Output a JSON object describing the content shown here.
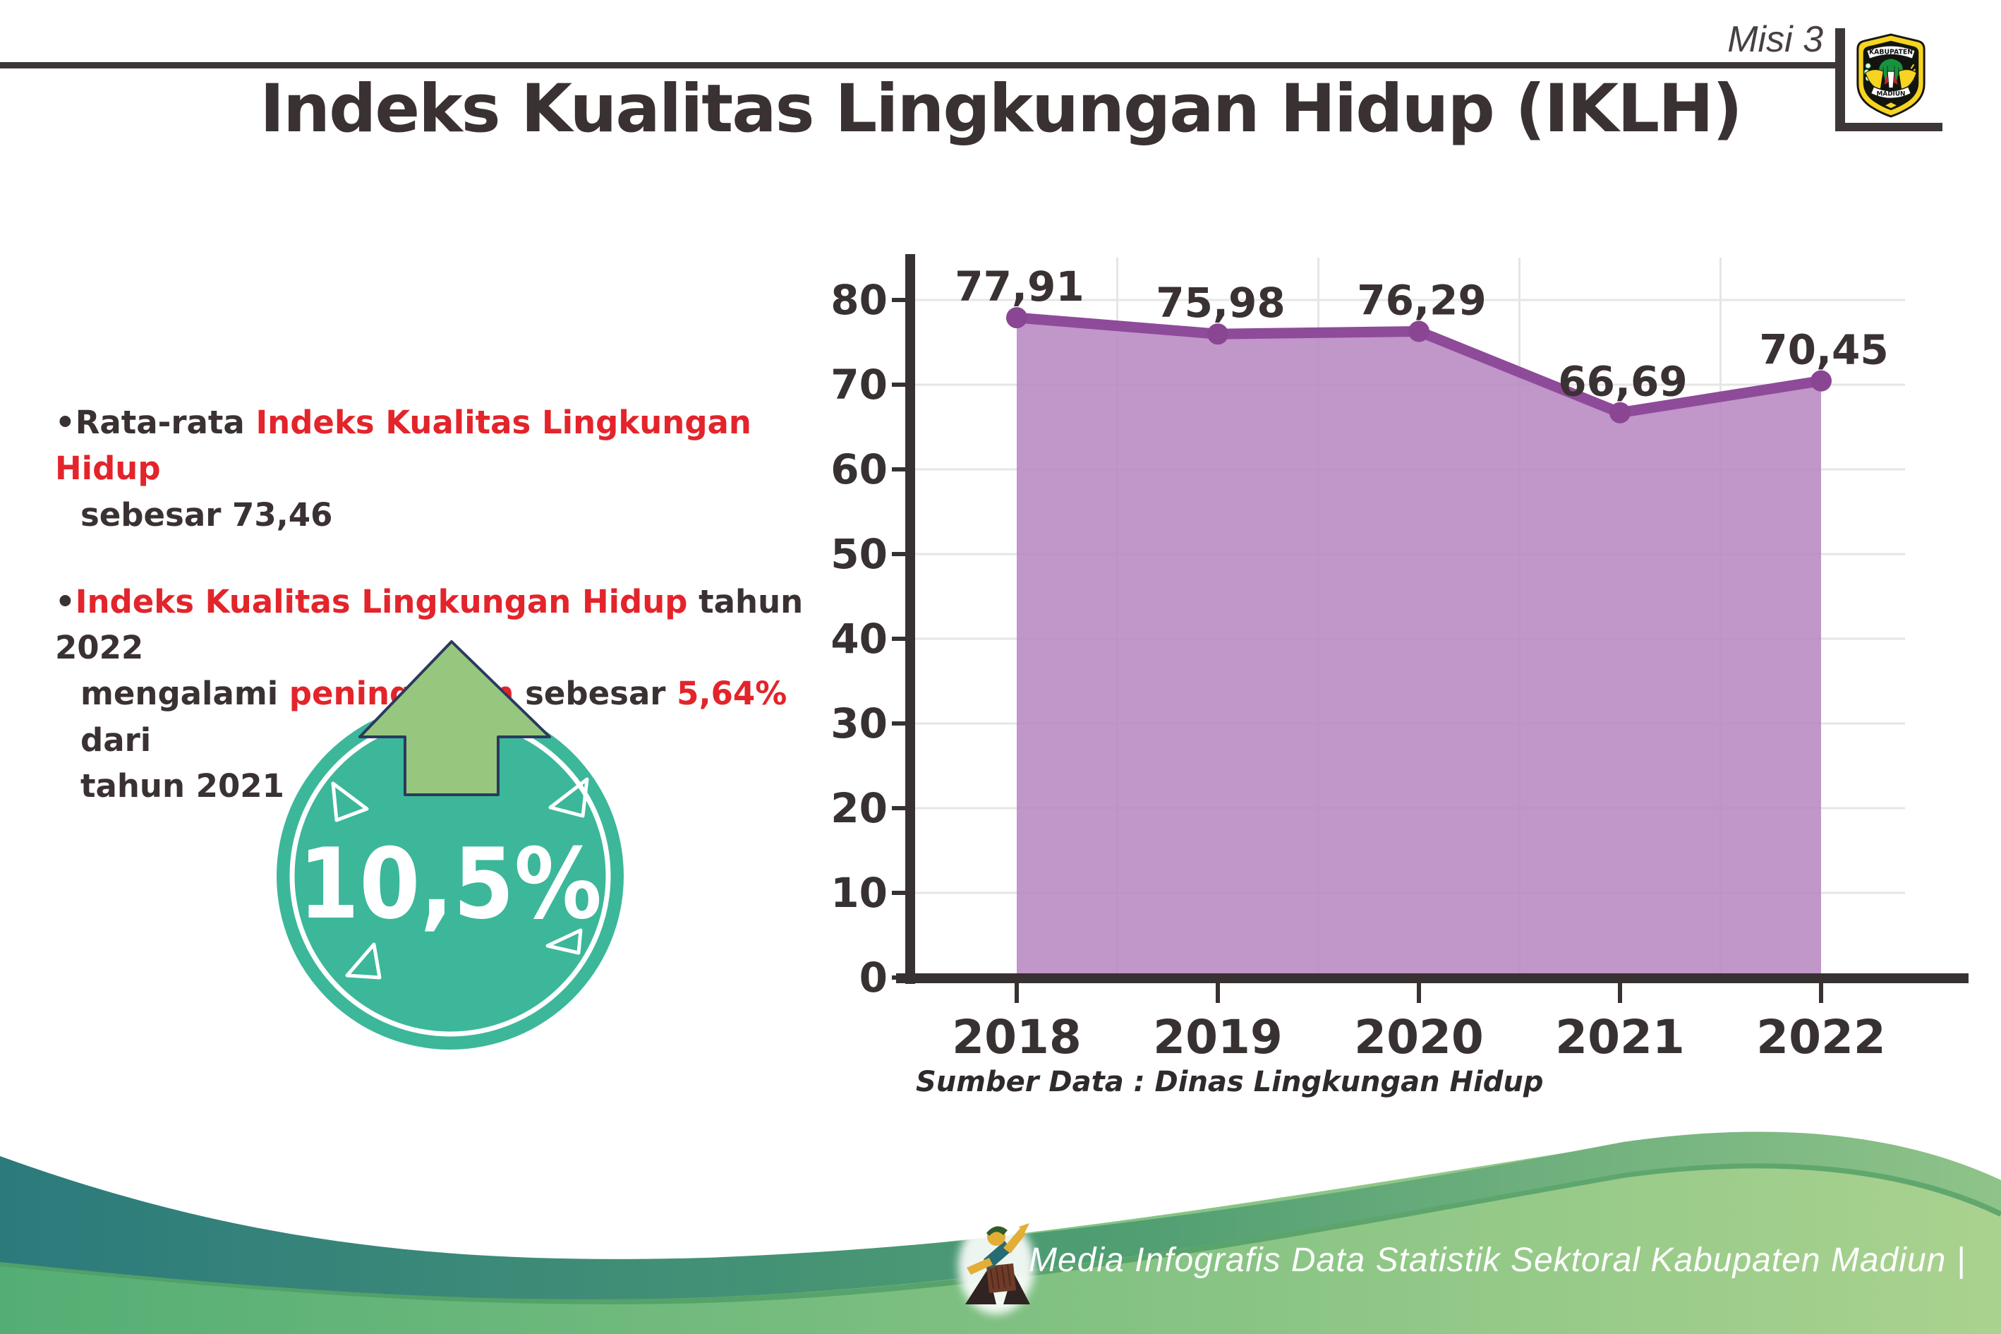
{
  "header": {
    "misi_label": "Misi 3",
    "logo_top": "KABUPATEN",
    "logo_bottom": "MADIUN"
  },
  "title": "Indeks Kualitas Lingkungan Hidup (IKLH)",
  "bullets": {
    "b1": {
      "lines": [
        [
          {
            "t": "•Rata-rata ",
            "c": "d"
          },
          {
            "t": "Indeks Kualitas Lingkungan Hidup",
            "c": "r"
          }
        ],
        [
          {
            "t": "sebesar 73,46",
            "c": "d"
          }
        ]
      ]
    },
    "b2": {
      "lines": [
        [
          {
            "t": "•",
            "c": "d"
          },
          {
            "t": "Indeks Kualitas Lingkungan Hidup",
            "c": "r"
          },
          {
            "t": " tahun 2022",
            "c": "d"
          }
        ],
        [
          {
            "t": "mengalami ",
            "c": "d"
          },
          {
            "t": "peningkatan",
            "c": "r"
          },
          {
            "t": " sebesar ",
            "c": "d"
          },
          {
            "t": "5,64%",
            "c": "r"
          },
          {
            "t": " dari",
            "c": "d"
          }
        ],
        [
          {
            "t": "tahun 2021",
            "c": "d"
          }
        ]
      ]
    }
  },
  "badge": {
    "value": "10,5%"
  },
  "chart_data": {
    "type": "area",
    "title": "",
    "xlabel": "",
    "ylabel": "",
    "categories": [
      "2018",
      "2019",
      "2020",
      "2021",
      "2022"
    ],
    "values": [
      77.91,
      75.98,
      76.29,
      66.69,
      70.45
    ],
    "labels": [
      "77,91",
      "75,98",
      "76,29",
      "66,69",
      "70,45"
    ],
    "yticks": [
      0,
      10,
      20,
      30,
      40,
      50,
      60,
      70,
      80
    ],
    "ylim": [
      0,
      85
    ],
    "grid": true,
    "legend": "none",
    "source": "Sumber Data : Dinas Lingkungan Hidup"
  },
  "footer": {
    "credit": "Media Infografis Data Statistik Sektoral Kabupaten Madiun |"
  },
  "colors": {
    "text_dark": "#3a3132",
    "accent_red": "#e3242b",
    "chart_line": "#8e4b99",
    "chart_fill": "#b888c1",
    "chart_marker": "#8a4693",
    "axis": "#383132",
    "grid": "#e7e5e6",
    "badge_circle": "#3cb79a",
    "badge_arrow": "#97c77f",
    "badge_arrow_outline": "#2b3a5e",
    "footer_teal_start": "#2c7a7c",
    "footer_teal_end": "#8fc389",
    "footer_green_start": "#54ae74",
    "footer_green_end": "#aad28f"
  }
}
